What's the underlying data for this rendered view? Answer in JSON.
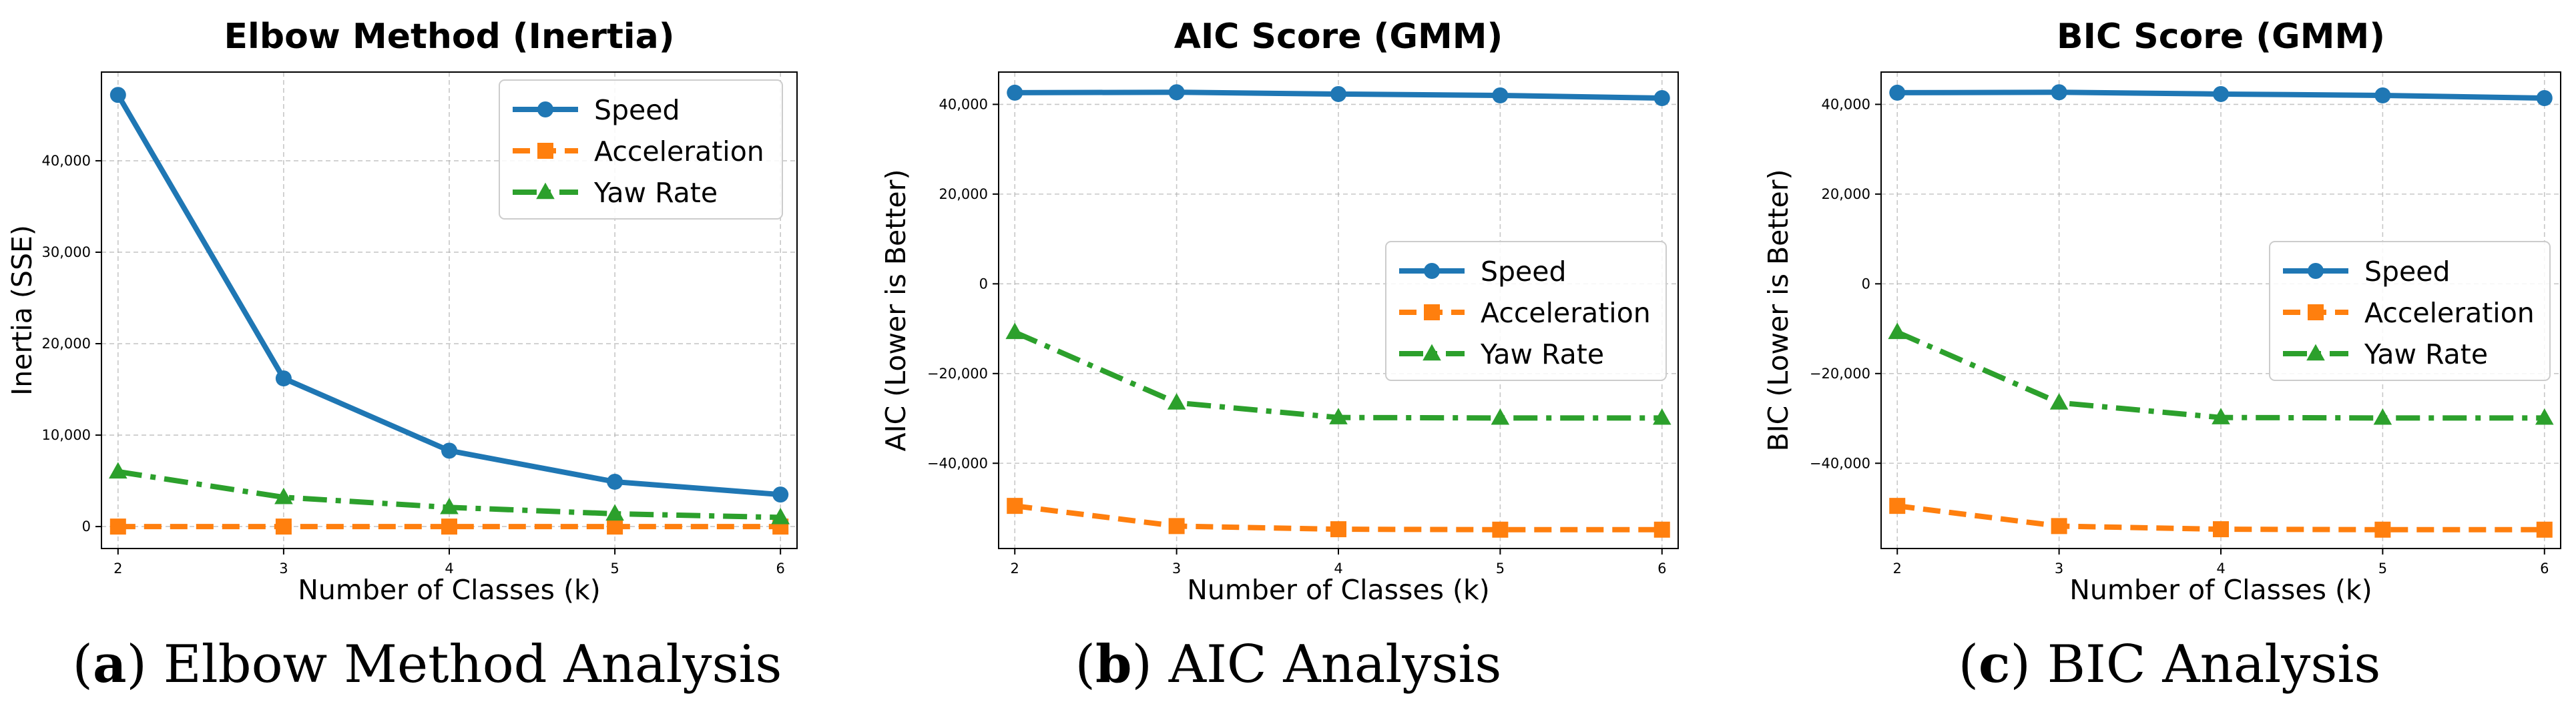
{
  "chart_data": [
    {
      "type": "line",
      "title": "Elbow Method (Inertia)",
      "xlabel": "Number of Classes (k)",
      "ylabel": "Inertia (SSE)",
      "x": [
        2,
        3,
        4,
        5,
        6
      ],
      "xlim": [
        1.9,
        6.1
      ],
      "ylim": [
        -2400,
        49700
      ],
      "yticks": [
        0,
        10000,
        20000,
        30000,
        40000
      ],
      "ytick_labels": [
        "0",
        "10,000",
        "20,000",
        "30,000",
        "40,000"
      ],
      "grid": true,
      "legend_position": "top-right",
      "series": [
        {
          "name": "Speed",
          "values": [
            47200,
            16200,
            8300,
            4900,
            3500
          ],
          "color": "#1f77b4",
          "marker": "circle",
          "dash": "solid"
        },
        {
          "name": "Acceleration",
          "values": [
            0,
            0,
            0,
            0,
            0
          ],
          "color": "#ff7f0e",
          "marker": "square",
          "dash": "dashed"
        },
        {
          "name": "Yaw Rate",
          "values": [
            6000,
            3200,
            2100,
            1400,
            1000
          ],
          "color": "#2ca02c",
          "marker": "triangle",
          "dash": "dashdot"
        }
      ]
    },
    {
      "type": "line",
      "title": "AIC Score (GMM)",
      "xlabel": "Number of Classes (k)",
      "ylabel": "AIC (Lower is Better)",
      "x": [
        2,
        3,
        4,
        5,
        6
      ],
      "xlim": [
        1.9,
        6.1
      ],
      "ylim": [
        -59000,
        47200
      ],
      "yticks": [
        -40000,
        -20000,
        0,
        20000,
        40000
      ],
      "ytick_labels": [
        "−40,000",
        "−20,000",
        "0",
        "20,000",
        "40,000"
      ],
      "grid": true,
      "legend_position": "center-right",
      "series": [
        {
          "name": "Speed",
          "values": [
            42600,
            42700,
            42300,
            42000,
            41400
          ],
          "color": "#1f77b4",
          "marker": "circle",
          "dash": "solid"
        },
        {
          "name": "Acceleration",
          "values": [
            -49500,
            -54000,
            -54700,
            -54800,
            -54800
          ],
          "color": "#ff7f0e",
          "marker": "square",
          "dash": "dashed"
        },
        {
          "name": "Yaw Rate",
          "values": [
            -10800,
            -26500,
            -29800,
            -29900,
            -29900
          ],
          "color": "#2ca02c",
          "marker": "triangle",
          "dash": "dashdot"
        }
      ]
    },
    {
      "type": "line",
      "title": "BIC Score (GMM)",
      "xlabel": "Number of Classes (k)",
      "ylabel": "BIC (Lower is Better)",
      "x": [
        2,
        3,
        4,
        5,
        6
      ],
      "xlim": [
        1.9,
        6.1
      ],
      "ylim": [
        -59000,
        47200
      ],
      "yticks": [
        -40000,
        -20000,
        0,
        20000,
        40000
      ],
      "ytick_labels": [
        "−40,000",
        "−20,000",
        "0",
        "20,000",
        "40,000"
      ],
      "grid": true,
      "legend_position": "center-right",
      "series": [
        {
          "name": "Speed",
          "values": [
            42600,
            42700,
            42300,
            42000,
            41400
          ],
          "color": "#1f77b4",
          "marker": "circle",
          "dash": "solid"
        },
        {
          "name": "Acceleration",
          "values": [
            -49500,
            -54000,
            -54700,
            -54800,
            -54800
          ],
          "color": "#ff7f0e",
          "marker": "square",
          "dash": "dashed"
        },
        {
          "name": "Yaw Rate",
          "values": [
            -10800,
            -26500,
            -29800,
            -29900,
            -29900
          ],
          "color": "#2ca02c",
          "marker": "triangle",
          "dash": "dashdot"
        }
      ]
    }
  ],
  "captions": [
    {
      "letter": "a",
      "text": "Elbow Method Analysis"
    },
    {
      "letter": "b",
      "text": "AIC Analysis"
    },
    {
      "letter": "c",
      "text": "BIC Analysis"
    }
  ]
}
